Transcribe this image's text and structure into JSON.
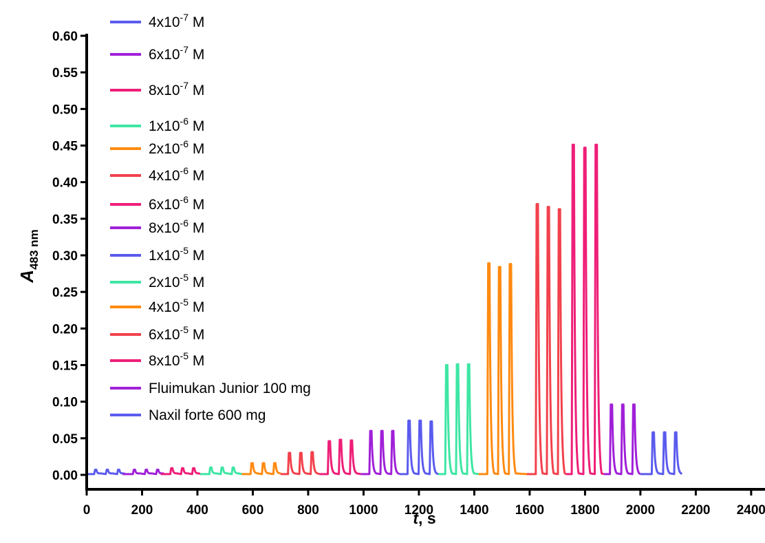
{
  "chart_data": {
    "type": "line",
    "title": "",
    "xlabel": {
      "main": "t",
      "suffix": ", s"
    },
    "ylabel": {
      "main": "A",
      "sub": "483 nm"
    },
    "xlim": [
      0,
      2450
    ],
    "ylim": [
      0,
      0.6
    ],
    "xticks": [
      "0",
      "200",
      "400",
      "600",
      "800",
      "1000",
      "1200",
      "1400",
      "1600",
      "1800",
      "2000",
      "2200",
      "2400"
    ],
    "yticks": [
      "0.00",
      "0.05",
      "0.10",
      "0.15",
      "0.20",
      "0.25",
      "0.30",
      "0.35",
      "0.40",
      "0.45",
      "0.50",
      "0.55",
      "0.60"
    ],
    "grid": false,
    "legend_position": "top-left",
    "series": [
      {
        "legend": {
          "pre": "4x10",
          "sup": "-7",
          "post": " M"
        },
        "color": "#5b5bee",
        "x_start": 0,
        "x_end": 130,
        "peaks": [
          [
            30,
            0.007
          ],
          [
            72,
            0.007
          ],
          [
            113,
            0.007
          ]
        ]
      },
      {
        "legend": {
          "pre": "6x10",
          "sup": "-7",
          "post": " M"
        },
        "color": "#a020d8",
        "x_start": 130,
        "x_end": 268,
        "peaks": [
          [
            170,
            0.007
          ],
          [
            213,
            0.007
          ],
          [
            254,
            0.007
          ]
        ]
      },
      {
        "legend": {
          "pre": "8x10",
          "sup": "-7",
          "post": " M"
        },
        "color": "#ee1f78",
        "x_start": 268,
        "x_end": 410,
        "peaks": [
          [
            305,
            0.009
          ],
          [
            344,
            0.009
          ],
          [
            384,
            0.009
          ]
        ]
      },
      {
        "legend": {
          "pre": "1x10",
          "sup": "-6",
          "post": " M"
        },
        "color": "#3ee6a4",
        "x_start": 410,
        "x_end": 560,
        "peaks": [
          [
            446,
            0.01
          ],
          [
            487,
            0.01
          ],
          [
            527,
            0.01
          ]
        ]
      },
      {
        "legend": {
          "pre": "2x10",
          "sup": "-6",
          "post": " M"
        },
        "color": "#ff8a10",
        "x_start": 560,
        "x_end": 700,
        "peaks": [
          [
            595,
            0.016
          ],
          [
            636,
            0.016
          ],
          [
            677,
            0.016
          ]
        ]
      },
      {
        "legend": {
          "pre": "4x10",
          "sup": "-6",
          "post": " M"
        },
        "color": "#f2414c",
        "x_start": 700,
        "x_end": 840,
        "peaks": [
          [
            730,
            0.03
          ],
          [
            771,
            0.03
          ],
          [
            812,
            0.031
          ]
        ]
      },
      {
        "legend": {
          "pre": "6x10",
          "sup": "-6",
          "post": " M"
        },
        "color": "#ee1f78",
        "x_start": 840,
        "x_end": 990,
        "peaks": [
          [
            874,
            0.046
          ],
          [
            914,
            0.048
          ],
          [
            954,
            0.047
          ]
        ]
      },
      {
        "legend": {
          "pre": "8x10",
          "sup": "-6",
          "post": " M"
        },
        "color": "#a020d8",
        "x_start": 990,
        "x_end": 1130,
        "peaks": [
          [
            1024,
            0.06
          ],
          [
            1064,
            0.06
          ],
          [
            1103,
            0.06
          ]
        ]
      },
      {
        "legend": {
          "pre": "1x10",
          "sup": "-5",
          "post": " M"
        },
        "color": "#5b5bee",
        "x_start": 1130,
        "x_end": 1270,
        "peaks": [
          [
            1162,
            0.074
          ],
          [
            1202,
            0.074
          ],
          [
            1242,
            0.073
          ]
        ]
      },
      {
        "legend": {
          "pre": "2x10",
          "sup": "-5",
          "post": " M"
        },
        "color": "#3ee6a4",
        "x_start": 1270,
        "x_end": 1415,
        "peaks": [
          [
            1298,
            0.15
          ],
          [
            1337,
            0.151
          ],
          [
            1377,
            0.151
          ]
        ]
      },
      {
        "legend": {
          "pre": "4x10",
          "sup": "-5",
          "post": " M"
        },
        "color": "#ff8a10",
        "x_start": 1415,
        "x_end": 1590,
        "peaks": [
          [
            1450,
            0.289
          ],
          [
            1489,
            0.284
          ],
          [
            1528,
            0.288
          ]
        ]
      },
      {
        "legend": {
          "pre": "6x10",
          "sup": "-5",
          "post": " M"
        },
        "color": "#f2414c",
        "x_start": 1590,
        "x_end": 1730,
        "peaks": [
          [
            1625,
            0.37
          ],
          [
            1665,
            0.366
          ],
          [
            1705,
            0.363
          ]
        ]
      },
      {
        "legend": {
          "pre": "8x10",
          "sup": "-5",
          "post": " M"
        },
        "color": "#ee1f78",
        "x_start": 1730,
        "x_end": 1868,
        "peaks": [
          [
            1755,
            0.451
          ],
          [
            1797,
            0.447
          ],
          [
            1838,
            0.451
          ]
        ]
      },
      {
        "legend": {
          "pre": "Fluimukan Junior 100 mg",
          "sup": "",
          "post": ""
        },
        "color": "#a020d8",
        "x_start": 1868,
        "x_end": 2000,
        "peaks": [
          [
            1893,
            0.096
          ],
          [
            1934,
            0.096
          ],
          [
            1974,
            0.096
          ]
        ]
      },
      {
        "legend": {
          "pre": "Naxil forte 600 mg",
          "sup": "",
          "post": ""
        },
        "color": "#5b5bee",
        "x_start": 2000,
        "x_end": 2150,
        "peaks": [
          [
            2044,
            0.058
          ],
          [
            2085,
            0.058
          ],
          [
            2125,
            0.058
          ]
        ]
      }
    ]
  }
}
